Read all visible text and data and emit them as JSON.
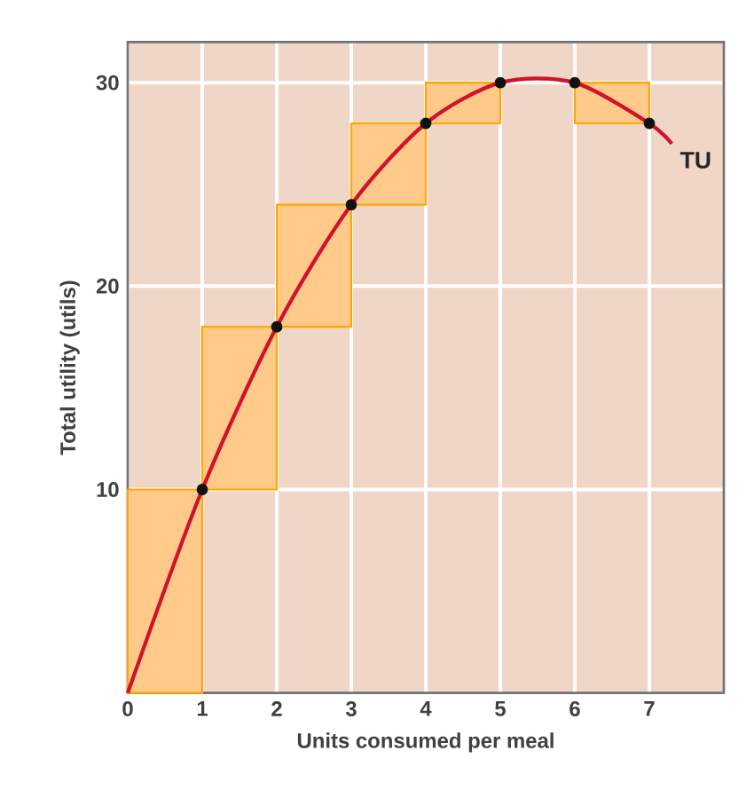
{
  "chart_data": {
    "type": "bar",
    "xlabel": "Units consumed per meal",
    "ylabel": "Total utility (utils)",
    "xlim": [
      0,
      8
    ],
    "ylim": [
      0,
      32
    ],
    "xticks": [
      0,
      1,
      2,
      3,
      4,
      5,
      6,
      7
    ],
    "yticks": [
      10,
      20,
      30
    ],
    "grid": true,
    "x": [
      0.5,
      1.5,
      2.5,
      3.5,
      4.5,
      5.5,
      6.5
    ],
    "series": [
      {
        "color": "#ffc98a",
        "values": [
          10,
          8,
          6,
          4,
          2,
          null,
          -2
        ],
        "base": [
          0,
          10,
          18,
          24,
          28,
          null,
          30
        ]
      },
      {
        "type": "line",
        "name": "TU",
        "color": "#d0122c",
        "x": [
          0,
          1,
          2,
          3,
          4,
          5,
          6,
          7,
          7.3
        ],
        "values": [
          0,
          10,
          18,
          24,
          28,
          30,
          30,
          28,
          27
        ]
      },
      {
        "type": "scatter",
        "color": "#111111",
        "marker": "circle",
        "x": [
          1,
          2,
          3,
          4,
          5,
          6,
          7
        ],
        "values": [
          10,
          18,
          24,
          28,
          30,
          30,
          28
        ]
      }
    ]
  }
}
